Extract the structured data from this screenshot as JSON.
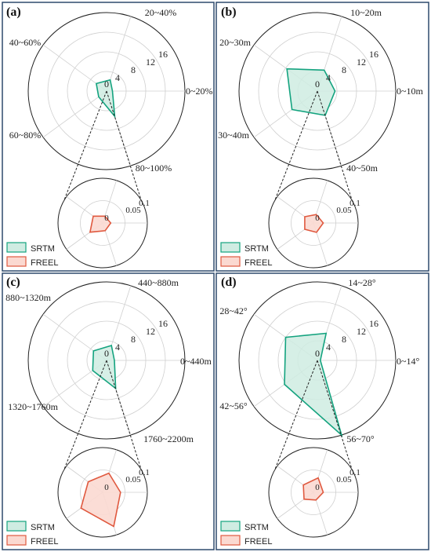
{
  "colors": {
    "srtm_stroke": "#14a37f",
    "srtm_fill": "#cfece2",
    "freel_stroke": "#e0593f",
    "freel_fill": "#fbd9d1",
    "panel_border": "#2f4a6d",
    "grid": "#cfcfcf"
  },
  "legend": {
    "srtm": "SRTM",
    "freel": "FREEL"
  },
  "chart_data": [
    {
      "type": "radar",
      "tag": "(a)",
      "categories": [
        "0~20%",
        "20~40%",
        "40~60%",
        "60~80%",
        "80~100%"
      ],
      "rings": [
        0,
        4,
        8,
        12,
        16
      ],
      "ring_labels": [
        "0",
        "4",
        "8",
        "12",
        "16"
      ],
      "rmax": 16,
      "series": [
        {
          "name": "SRTM",
          "values": [
            1.2,
            2.4,
            2.6,
            2.0,
            5.4
          ]
        }
      ],
      "inset": {
        "rings": [
          0,
          0.05,
          0.1
        ],
        "ring_labels": [
          "0",
          "0.05",
          "0.1"
        ],
        "rmax": 0.1,
        "series": [
          {
            "name": "FREEL",
            "values": [
              0.018,
              0.016,
              0.026,
              0.035,
              0.018
            ]
          }
        ]
      }
    },
    {
      "type": "radar",
      "tag": "(b)",
      "categories": [
        "0~10m",
        "10~20m",
        "20~30m",
        "30~40m",
        "40~50m"
      ],
      "rings": [
        0,
        4,
        8,
        12,
        16
      ],
      "ring_labels": [
        "0",
        "4",
        "8",
        "12",
        "16"
      ],
      "rmax": 16,
      "series": [
        {
          "name": "SRTM",
          "values": [
            3.6,
            4.5,
            7.7,
            6.4,
            5.2
          ]
        }
      ],
      "inset": {
        "rings": [
          0,
          0.05,
          0.1
        ],
        "ring_labels": [
          "0",
          "0.05",
          "0.1"
        ],
        "rmax": 0.1,
        "series": [
          {
            "name": "FREEL",
            "values": [
              0.022,
              0.02,
              0.024,
              0.024,
              0.022
            ]
          }
        ]
      }
    },
    {
      "type": "radar",
      "tag": "(c)",
      "categories": [
        "0~440m",
        "440~880m",
        "880~1320m",
        "1320~1760m",
        "1760~2200m"
      ],
      "rings": [
        0,
        4,
        8,
        12,
        16
      ],
      "ring_labels": [
        "0",
        "4",
        "8",
        "12",
        "16"
      ],
      "rmax": 16,
      "series": [
        {
          "name": "SRTM",
          "values": [
            1.6,
            3.2,
            3.3,
            3.5,
            6.0
          ]
        }
      ],
      "inset": {
        "rings": [
          0,
          0.05,
          0.1
        ],
        "ring_labels": [
          "0",
          "0.05",
          "0.1"
        ],
        "rmax": 0.1,
        "series": [
          {
            "name": "FREEL",
            "values": [
              0.04,
              0.045,
              0.04,
              0.06,
              0.08
            ]
          }
        ]
      }
    },
    {
      "type": "radar",
      "tag": "(d)",
      "categories": [
        "0~14°",
        "14~28°",
        "28~42°",
        "42~56°",
        "56~70°"
      ],
      "rings": [
        0,
        4,
        8,
        12,
        16
      ],
      "ring_labels": [
        "0",
        "4",
        "8",
        "12",
        "16"
      ],
      "rmax": 16,
      "series": [
        {
          "name": "SRTM",
          "values": [
            0.6,
            5.8,
            8.0,
            8.3,
            16.0
          ]
        }
      ],
      "inset": {
        "rings": [
          0,
          0.05,
          0.1
        ],
        "ring_labels": [
          "0",
          "0.05",
          "0.1"
        ],
        "rmax": 0.1,
        "series": [
          {
            "name": "FREEL",
            "values": [
              0.022,
              0.034,
              0.028,
              0.026,
              0.018
            ]
          }
        ]
      }
    }
  ]
}
